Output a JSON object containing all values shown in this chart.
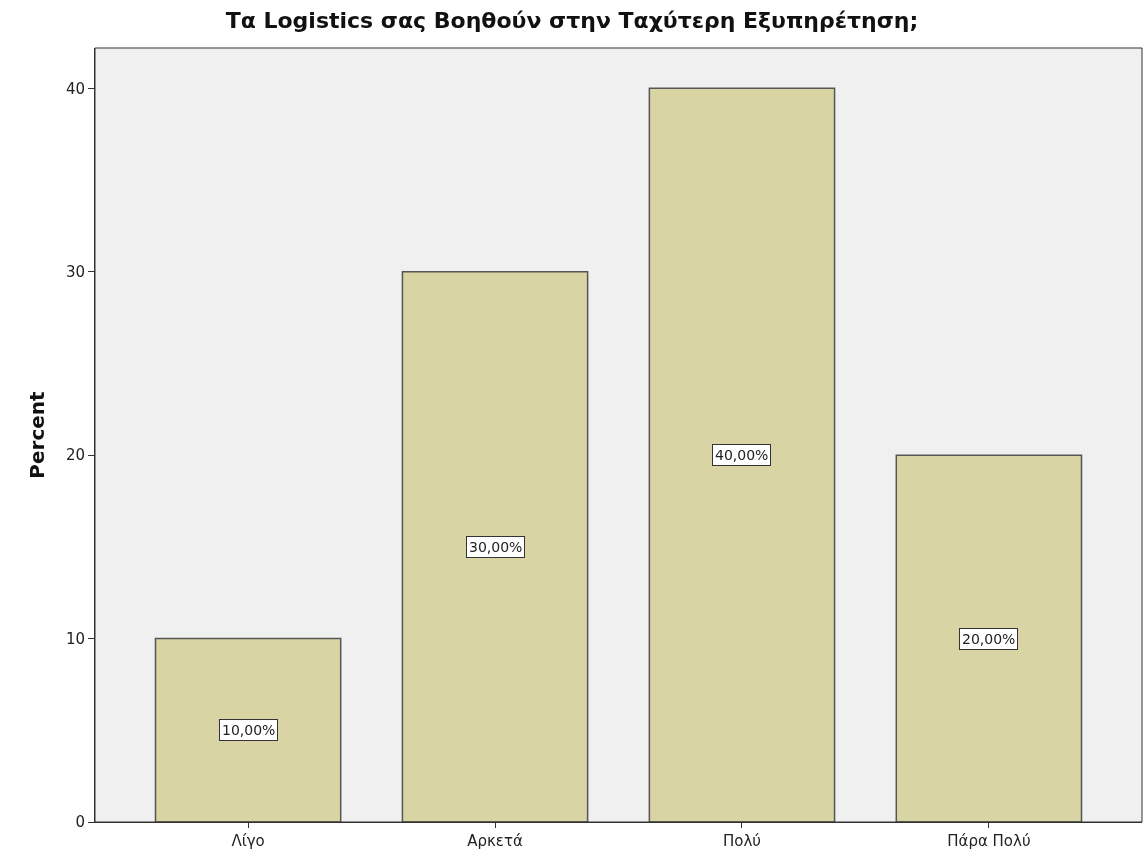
{
  "chart_data": {
    "type": "bar",
    "title": "Τα Logistics σας Βοηθούν στην Ταχύτερη Εξυπηρέτηση;",
    "ylabel": "Percent",
    "categories": [
      "Λίγο",
      "Αρκετά",
      "Πολύ",
      "Πάρα Πολύ"
    ],
    "values": [
      10,
      30,
      40,
      20
    ],
    "value_labels": [
      "10,00%",
      "30,00%",
      "40,00%",
      "20,00%"
    ],
    "color": "#d9d4a3",
    "ylim": [
      0,
      42.2
    ],
    "yticks": [
      0,
      10,
      20,
      30,
      40
    ],
    "grid": false,
    "legend": false
  }
}
